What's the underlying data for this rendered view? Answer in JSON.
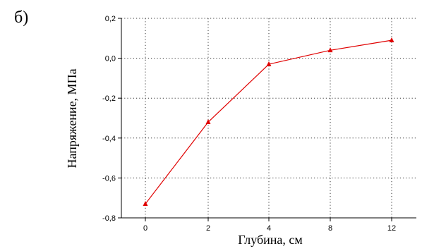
{
  "panel_label": "б)",
  "chart_data": {
    "type": "line",
    "title": "",
    "xlabel": "Глубина, см",
    "ylabel": "Напряжение, МПа",
    "categories": [
      "0",
      "2",
      "4",
      "8",
      "12"
    ],
    "y_tick_labels": [
      "0,2",
      "0,0",
      "-0,2",
      "-0,4",
      "-0,6",
      "-0,8"
    ],
    "y_ticks": [
      0.2,
      0.0,
      -0.2,
      -0.4,
      -0.6,
      -0.8
    ],
    "ylim": [
      -0.8,
      0.2
    ],
    "grid": true,
    "series": [
      {
        "values": [
          -0.73,
          -0.32,
          -0.03,
          0.04,
          0.09
        ],
        "color": "#e00000",
        "marker": "triangle"
      }
    ]
  }
}
